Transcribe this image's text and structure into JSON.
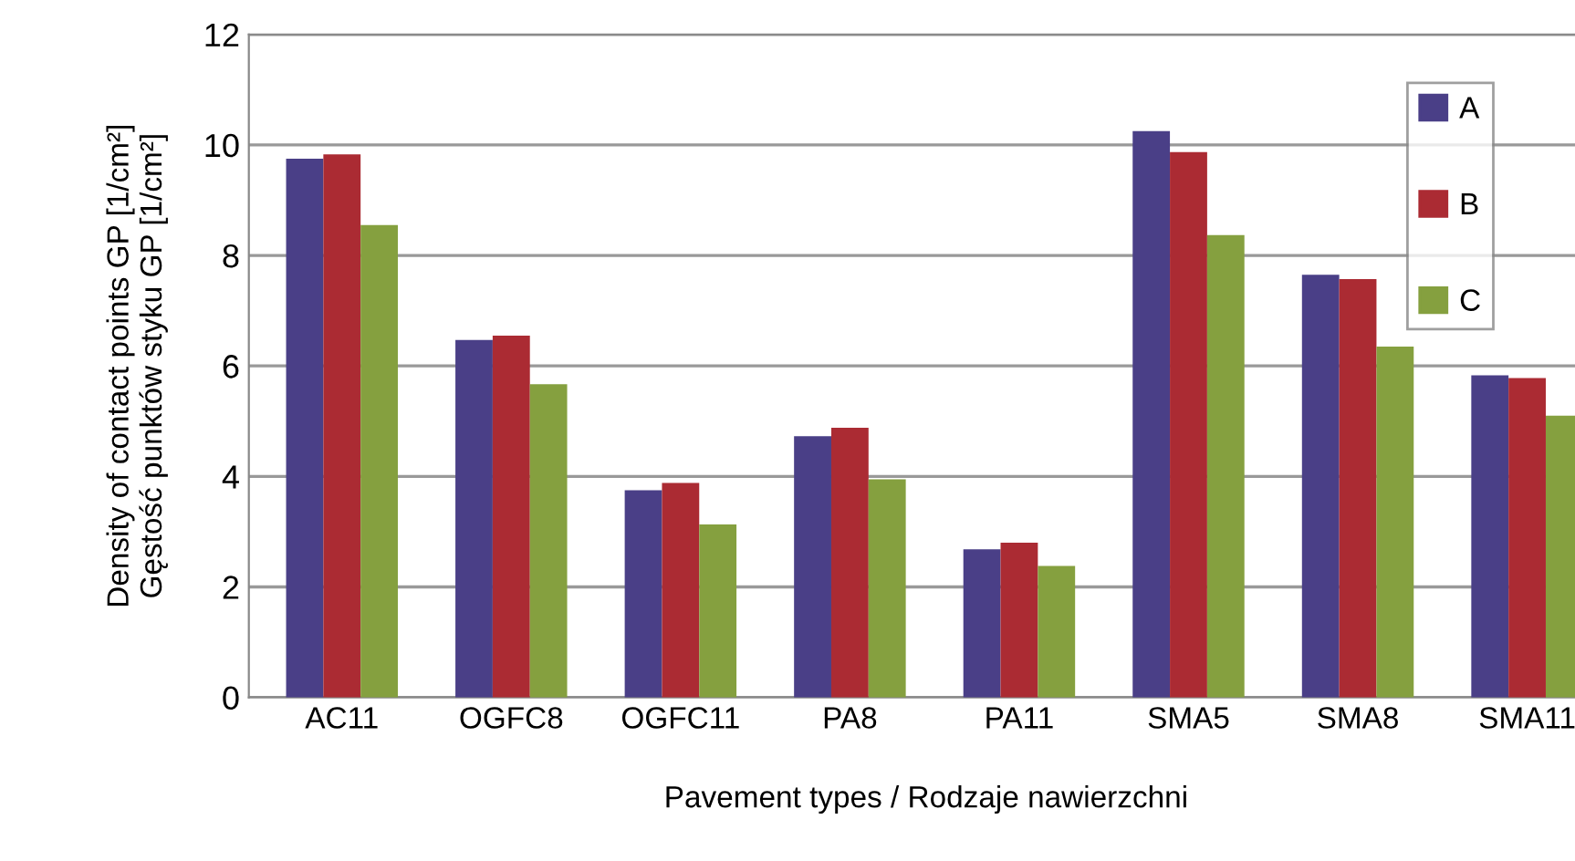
{
  "chart_data": {
    "type": "bar",
    "xlabel": "Pavement types / Rodzaje nawierzchni",
    "ylabel": "Density of contact points GP [1/cm²]\nGęstość punktów styku GP [1/cm²]",
    "categories": [
      "AC11",
      "OGFC8",
      "OGFC11",
      "PA8",
      "PA11",
      "SMA5",
      "SMA8",
      "SMA11"
    ],
    "series": [
      {
        "name": "A",
        "color": "#4a3f87",
        "values": [
          9.75,
          6.47,
          3.75,
          4.73,
          2.68,
          10.25,
          7.65,
          5.83
        ]
      },
      {
        "name": "B",
        "color": "#ab2b33",
        "values": [
          9.83,
          6.55,
          3.88,
          4.88,
          2.8,
          9.87,
          7.57,
          5.78
        ]
      },
      {
        "name": "C",
        "color": "#85a03f",
        "values": [
          8.55,
          5.67,
          3.13,
          3.95,
          2.38,
          8.37,
          6.35,
          5.1
        ]
      }
    ],
    "ylim": [
      0,
      12
    ],
    "yticks": [
      0,
      2,
      4,
      6,
      8,
      10,
      12
    ],
    "grid": "y",
    "legend": "top right"
  }
}
